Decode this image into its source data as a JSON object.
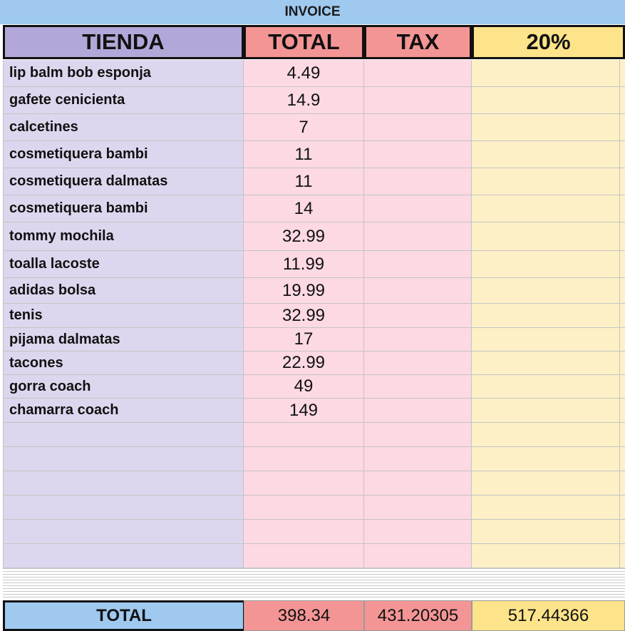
{
  "title": "INVOICE",
  "headers": {
    "store": "TIENDA",
    "total": "TOTAL",
    "tax": "TAX",
    "percent": "20%"
  },
  "rows": [
    {
      "item": "lip balm bob esponja",
      "total": "4.49"
    },
    {
      "item": "gafete cenicienta",
      "total": "14.9"
    },
    {
      "item": "calcetines",
      "total": "7"
    },
    {
      "item": "cosmetiquera bambi",
      "total": "11"
    },
    {
      "item": "cosmetiquera dalmatas",
      "total": "11"
    },
    {
      "item": "cosmetiquera bambi",
      "total": "14"
    },
    {
      "item": "tommy mochila",
      "total": "32.99"
    },
    {
      "item": "toalla lacoste",
      "total": "11.99"
    },
    {
      "item": "adidas bolsa",
      "total": "19.99"
    },
    {
      "item": "tenis",
      "total": "32.99"
    },
    {
      "item": "pijama dalmatas",
      "total": "17"
    },
    {
      "item": "tacones",
      "total": "22.99"
    },
    {
      "item": "gorra coach",
      "total": "49"
    },
    {
      "item": "chamarra coach",
      "total": "149"
    },
    {
      "item": "",
      "total": ""
    },
    {
      "item": "",
      "total": ""
    },
    {
      "item": "",
      "total": ""
    },
    {
      "item": "",
      "total": ""
    },
    {
      "item": "",
      "total": ""
    },
    {
      "item": "",
      "total": ""
    }
  ],
  "footer": {
    "label": "TOTAL",
    "total": "398.34",
    "tax": "431.20305",
    "percent": "517.44366"
  },
  "colors": {
    "title_bg": "#9fc9ef",
    "store_header": "#b3a7d9",
    "money_header": "#f49595",
    "percent_header": "#fde38a",
    "store_col": "#ddd6ee",
    "money_col": "#fcd9e3",
    "percent_col": "#fdf0c6"
  }
}
